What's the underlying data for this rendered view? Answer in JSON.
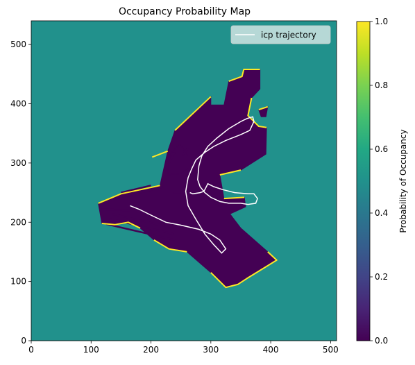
{
  "chart_data": {
    "type": "heatmap",
    "title": "Occupancy Probability Map",
    "xlabel": "",
    "ylabel": "",
    "xlim": [
      0,
      510
    ],
    "ylim": [
      0,
      540
    ],
    "xticks": [
      0,
      100,
      200,
      300,
      400,
      500
    ],
    "yticks": [
      0,
      100,
      200,
      300,
      400,
      500
    ],
    "grid": false,
    "legend": {
      "placement": "top-right",
      "entries": [
        "icp trajectory"
      ]
    },
    "colorbar": {
      "label": "Probability of Occupancy",
      "range": [
        0,
        1
      ],
      "ticks": [
        "0.0",
        "0.2",
        "0.4",
        "0.6",
        "0.8",
        "1.0"
      ],
      "colormap": "viridis"
    },
    "background_value": 0.5,
    "colors": {
      "unknown": "#21918c",
      "free": "#440154",
      "occupied": "#fde725",
      "trajectory": "#ffffff"
    },
    "free_region_polygons": [
      [
        [
          112,
          232
        ],
        [
          150,
          248
        ],
        [
          215,
          262
        ],
        [
          228,
          320
        ],
        [
          240,
          355
        ],
        [
          300,
          412
        ],
        [
          300,
          398
        ],
        [
          322,
          398
        ],
        [
          330,
          438
        ],
        [
          352,
          446
        ],
        [
          355,
          458
        ],
        [
          382,
          458
        ],
        [
          382,
          425
        ],
        [
          368,
          410
        ],
        [
          362,
          380
        ],
        [
          380,
          362
        ],
        [
          393,
          360
        ],
        [
          392,
          315
        ],
        [
          350,
          288
        ],
        [
          315,
          280
        ],
        [
          322,
          240
        ],
        [
          356,
          242
        ],
        [
          358,
          226
        ],
        [
          332,
          214
        ],
        [
          350,
          190
        ],
        [
          395,
          150
        ],
        [
          410,
          136
        ],
        [
          360,
          105
        ],
        [
          345,
          95
        ],
        [
          325,
          90
        ],
        [
          300,
          115
        ],
        [
          260,
          150
        ],
        [
          230,
          155
        ],
        [
          205,
          170
        ],
        [
          182,
          190
        ],
        [
          162,
          200
        ],
        [
          140,
          196
        ],
        [
          118,
          198
        ]
      ],
      [
        [
          228,
          280
        ],
        [
          250,
          282
        ],
        [
          262,
          292
        ],
        [
          262,
          312
        ],
        [
          248,
          332
        ],
        [
          232,
          315
        ]
      ],
      [
        [
          380,
          390
        ],
        [
          395,
          395
        ],
        [
          392,
          378
        ],
        [
          384,
          378
        ]
      ]
    ],
    "free_streaks": [
      [
        [
          125,
          197
        ],
        [
          240,
          170
        ]
      ],
      [
        [
          130,
          206
        ],
        [
          238,
          180
        ]
      ],
      [
        [
          135,
          214
        ],
        [
          230,
          192
        ]
      ],
      [
        [
          118,
          222
        ],
        [
          165,
          220
        ]
      ],
      [
        [
          140,
          240
        ],
        [
          222,
          260
        ]
      ],
      [
        [
          150,
          250
        ],
        [
          200,
          262
        ]
      ],
      [
        [
          238,
          250
        ],
        [
          265,
          250
        ]
      ],
      [
        [
          230,
          300
        ],
        [
          240,
          318
        ]
      ],
      [
        [
          252,
          312
        ],
        [
          262,
          325
        ]
      ]
    ],
    "occupied_edges": [
      [
        [
          112,
          232
        ],
        [
          150,
          248
        ],
        [
          215,
          262
        ]
      ],
      [
        [
          240,
          355
        ],
        [
          300,
          412
        ]
      ],
      [
        [
          330,
          438
        ],
        [
          352,
          446
        ],
        [
          355,
          458
        ],
        [
          382,
          458
        ]
      ],
      [
        [
          368,
          410
        ],
        [
          362,
          380
        ],
        [
          380,
          362
        ],
        [
          393,
          360
        ]
      ],
      [
        [
          350,
          288
        ],
        [
          315,
          280
        ]
      ],
      [
        [
          322,
          240
        ],
        [
          356,
          242
        ]
      ],
      [
        [
          395,
          150
        ],
        [
          410,
          136
        ],
        [
          360,
          105
        ],
        [
          345,
          95
        ],
        [
          325,
          90
        ],
        [
          300,
          115
        ]
      ],
      [
        [
          182,
          190
        ],
        [
          162,
          200
        ],
        [
          140,
          196
        ],
        [
          118,
          198
        ]
      ],
      [
        [
          260,
          150
        ],
        [
          230,
          155
        ],
        [
          205,
          170
        ]
      ],
      [
        [
          202,
          310
        ],
        [
          228,
          320
        ]
      ],
      [
        [
          380,
          390
        ],
        [
          395,
          395
        ]
      ]
    ],
    "trajectory": {
      "name": "icp trajectory",
      "x": [
        165,
        180,
        200,
        225,
        250,
        280,
        300,
        315,
        325,
        318,
        305,
        290,
        275,
        262,
        258,
        262,
        268,
        275,
        290,
        305,
        325,
        350,
        365,
        372,
        370,
        360,
        350,
        330,
        310,
        295,
        285,
        280,
        278,
        282,
        290,
        300,
        315,
        330,
        350,
        362,
        375,
        378,
        372,
        362,
        340,
        320,
        305,
        295,
        290,
        288,
        282,
        270,
        265
      ],
      "y": [
        228,
        222,
        212,
        200,
        195,
        188,
        180,
        170,
        155,
        148,
        162,
        180,
        205,
        228,
        252,
        275,
        290,
        305,
        318,
        328,
        338,
        348,
        355,
        370,
        378,
        375,
        370,
        358,
        342,
        328,
        312,
        295,
        272,
        260,
        250,
        242,
        235,
        232,
        232,
        230,
        232,
        240,
        248,
        248,
        250,
        255,
        260,
        265,
        255,
        252,
        250,
        248,
        250
      ]
    }
  }
}
